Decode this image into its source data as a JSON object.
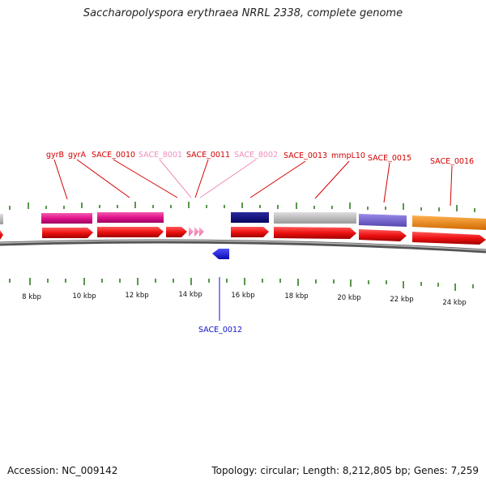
{
  "title": "Saccharopolyspora erythraea NRRL 2338, complete genome",
  "footer": {
    "accession": "Accession: NC_009142",
    "summary": "Topology: circular; Length: 8,212,805 bp; Genes: 7,259"
  },
  "scale_labels": [
    "8 kbp",
    "10 kbp",
    "12 kbp",
    "14 kbp",
    "16 kbp",
    "18 kbp",
    "20 kbp",
    "22 kbp",
    "24 kbp"
  ],
  "gene_labels": {
    "gyrB": "gyrB",
    "gyrA": "gyrA",
    "sace_0010": "SACE_0010",
    "sace_8001": "SACE_8001",
    "sace_0011": "SACE_0011",
    "sace_8002": "SACE_8002",
    "sace_0013": "SACE_0013",
    "mmpL10": "mmpL10",
    "sace_0015": "SACE_0015",
    "sace_0016": "SACE_0016",
    "sace_0012": "SACE_0012"
  },
  "colors": {
    "cds": "#ee1111",
    "trna_like": "#f58ab8",
    "magenta": "#e0148c",
    "navy": "#0a0a80",
    "gray": "#c0c0c0",
    "purple": "#7766cc",
    "orange": "#f08a10",
    "blue": "#1a1ae6",
    "tick_green": "#2e7d1e"
  }
}
